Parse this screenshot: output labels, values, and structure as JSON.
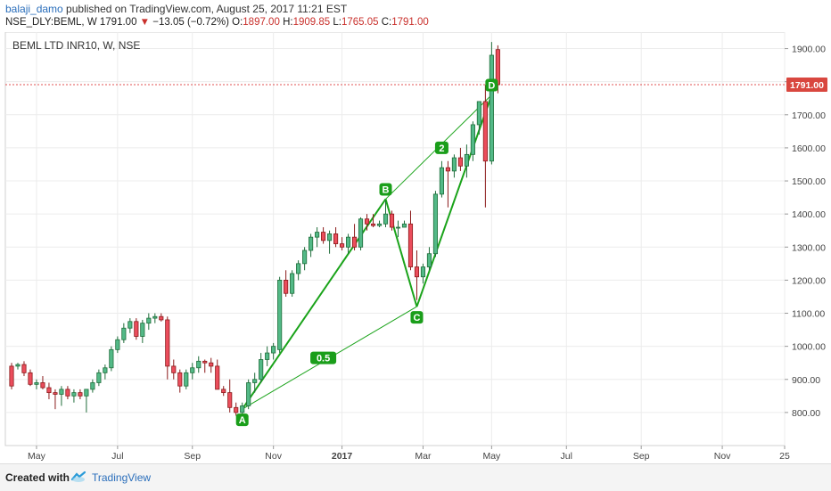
{
  "header": {
    "user": "balaji_damo",
    "published_text": " published on TradingView.com, August 25, 2017 11:21 EST",
    "symbol": "NSE_DLY:BEML, W",
    "last": "1791.00",
    "change_arrow": "▼",
    "change": "−13.05 (−0.72%)",
    "o_label": "O:",
    "o_val": "1897.00",
    "h_label": "H:",
    "h_val": "1909.85",
    "l_label": "L:",
    "l_val": "1765.05",
    "c_label": "C:",
    "c_val": "1791.00"
  },
  "footer": {
    "created_with": "Created with",
    "brand": "TradingView"
  },
  "chart_data": {
    "type": "candlestick",
    "title": "BEML LTD INR10, W, NSE",
    "colors": {
      "up": "#53b987",
      "down": "#eb4d5c",
      "up_border": "#1f6d3a",
      "down_border": "#8b1a1a",
      "pattern": "#1aa31a",
      "last_line": "#e05050",
      "grid": "#ececec"
    },
    "ylim": [
      700,
      1950
    ],
    "yticks": [
      800,
      900,
      1000,
      1100,
      1200,
      1300,
      1400,
      1500,
      1600,
      1700,
      1800,
      1900
    ],
    "ytick_labels": [
      "800.00",
      "900.00",
      "1000.00",
      "1100.00",
      "1200.00",
      "1300.00",
      "1400.00",
      "1500.00",
      "1600.00",
      "1700.00",
      "1800.00",
      "1900.00"
    ],
    "xlim": [
      -1,
      124
    ],
    "xticks": [
      4,
      17,
      29,
      42,
      53,
      66,
      77,
      89,
      101,
      114,
      124
    ],
    "xtick_labels": [
      "May",
      "Jul",
      "Sep",
      "Nov",
      "2017",
      "Mar",
      "May",
      "Jul",
      "Sep",
      "Nov",
      "25"
    ],
    "grid": true,
    "last_price": 1791,
    "last_price_label": "1791.00",
    "candles": [
      [
        0,
        940,
        950,
        870,
        880
      ],
      [
        1,
        940,
        950,
        930,
        945
      ],
      [
        2,
        945,
        955,
        910,
        920
      ],
      [
        3,
        920,
        930,
        880,
        885
      ],
      [
        4,
        885,
        900,
        870,
        890
      ],
      [
        5,
        890,
        910,
        870,
        875
      ],
      [
        6,
        875,
        890,
        840,
        860
      ],
      [
        7,
        860,
        870,
        810,
        855
      ],
      [
        8,
        855,
        880,
        820,
        870
      ],
      [
        9,
        870,
        880,
        840,
        850
      ],
      [
        10,
        850,
        870,
        830,
        860
      ],
      [
        11,
        860,
        870,
        840,
        850
      ],
      [
        12,
        850,
        860,
        800,
        870
      ],
      [
        13,
        870,
        900,
        860,
        890
      ],
      [
        14,
        890,
        930,
        880,
        920
      ],
      [
        15,
        920,
        945,
        900,
        935
      ],
      [
        16,
        935,
        1000,
        925,
        990
      ],
      [
        17,
        990,
        1030,
        980,
        1020
      ],
      [
        18,
        1020,
        1070,
        1010,
        1055
      ],
      [
        19,
        1055,
        1085,
        1040,
        1075
      ],
      [
        20,
        1075,
        1085,
        1020,
        1030
      ],
      [
        21,
        1030,
        1080,
        1010,
        1070
      ],
      [
        22,
        1070,
        1100,
        1050,
        1085
      ],
      [
        23,
        1085,
        1100,
        1070,
        1090
      ],
      [
        24,
        1090,
        1100,
        1075,
        1080
      ],
      [
        25,
        1080,
        1090,
        900,
        940
      ],
      [
        26,
        940,
        960,
        900,
        920
      ],
      [
        27,
        920,
        930,
        860,
        880
      ],
      [
        28,
        880,
        930,
        870,
        920
      ],
      [
        29,
        920,
        950,
        900,
        935
      ],
      [
        30,
        935,
        970,
        920,
        955
      ],
      [
        31,
        955,
        960,
        920,
        950
      ],
      [
        32,
        950,
        965,
        920,
        940
      ],
      [
        33,
        940,
        960,
        880,
        870
      ],
      [
        34,
        870,
        880,
        850,
        860
      ],
      [
        35,
        860,
        900,
        800,
        815
      ],
      [
        36,
        815,
        830,
        790,
        800
      ],
      [
        37,
        800,
        830,
        790,
        820
      ],
      [
        38,
        820,
        900,
        810,
        890
      ],
      [
        39,
        890,
        920,
        860,
        900
      ],
      [
        40,
        900,
        980,
        890,
        960
      ],
      [
        41,
        960,
        1000,
        940,
        980
      ],
      [
        42,
        980,
        1010,
        960,
        1000
      ],
      [
        43,
        990,
        1210,
        980,
        1200
      ],
      [
        44,
        1200,
        1230,
        1150,
        1160
      ],
      [
        45,
        1160,
        1230,
        1150,
        1220
      ],
      [
        46,
        1220,
        1260,
        1200,
        1250
      ],
      [
        47,
        1250,
        1300,
        1230,
        1290
      ],
      [
        48,
        1290,
        1340,
        1270,
        1330
      ],
      [
        49,
        1330,
        1360,
        1300,
        1345
      ],
      [
        50,
        1345,
        1360,
        1310,
        1320
      ],
      [
        51,
        1320,
        1350,
        1280,
        1340
      ],
      [
        52,
        1340,
        1360,
        1300,
        1310
      ],
      [
        53,
        1310,
        1330,
        1290,
        1300
      ],
      [
        54,
        1300,
        1340,
        1280,
        1330
      ],
      [
        55,
        1330,
        1370,
        1290,
        1300
      ],
      [
        56,
        1300,
        1390,
        1290,
        1385
      ],
      [
        57,
        1385,
        1400,
        1350,
        1370
      ],
      [
        58,
        1370,
        1400,
        1360,
        1365
      ],
      [
        59,
        1365,
        1380,
        1360,
        1370
      ],
      [
        60,
        1370,
        1440,
        1360,
        1400
      ],
      [
        61,
        1400,
        1410,
        1350,
        1360
      ],
      [
        62,
        1360,
        1380,
        1330,
        1360
      ],
      [
        63,
        1360,
        1380,
        1360,
        1370
      ],
      [
        64,
        1370,
        1410,
        1230,
        1240
      ],
      [
        65,
        1240,
        1290,
        1140,
        1210
      ],
      [
        66,
        1210,
        1250,
        1190,
        1240
      ],
      [
        67,
        1240,
        1300,
        1230,
        1280
      ],
      [
        68,
        1280,
        1470,
        1270,
        1460
      ],
      [
        69,
        1460,
        1560,
        1450,
        1540
      ],
      [
        70,
        1540,
        1560,
        1420,
        1530
      ],
      [
        71,
        1530,
        1580,
        1510,
        1570
      ],
      [
        72,
        1570,
        1600,
        1530,
        1545
      ],
      [
        73,
        1545,
        1610,
        1510,
        1580
      ],
      [
        74,
        1580,
        1680,
        1560,
        1670
      ],
      [
        75,
        1670,
        1730,
        1640,
        1740
      ],
      [
        76,
        1740,
        1790,
        1420,
        1560
      ],
      [
        77,
        1560,
        1920,
        1550,
        1880
      ],
      [
        78,
        1897,
        1909.85,
        1765.05,
        1791
      ]
    ],
    "pattern": {
      "points": [
        {
          "name": "A",
          "x": 37,
          "y": 810
        },
        {
          "name": "B",
          "x": 60,
          "y": 1445
        },
        {
          "name": "C",
          "x": 65,
          "y": 1120
        },
        {
          "name": "D",
          "x": 77,
          "y": 1760
        }
      ],
      "ratio_labels": [
        {
          "text": "0.5",
          "x": 50,
          "y": 965
        },
        {
          "text": "2",
          "x": 69,
          "y": 1600
        }
      ]
    }
  }
}
